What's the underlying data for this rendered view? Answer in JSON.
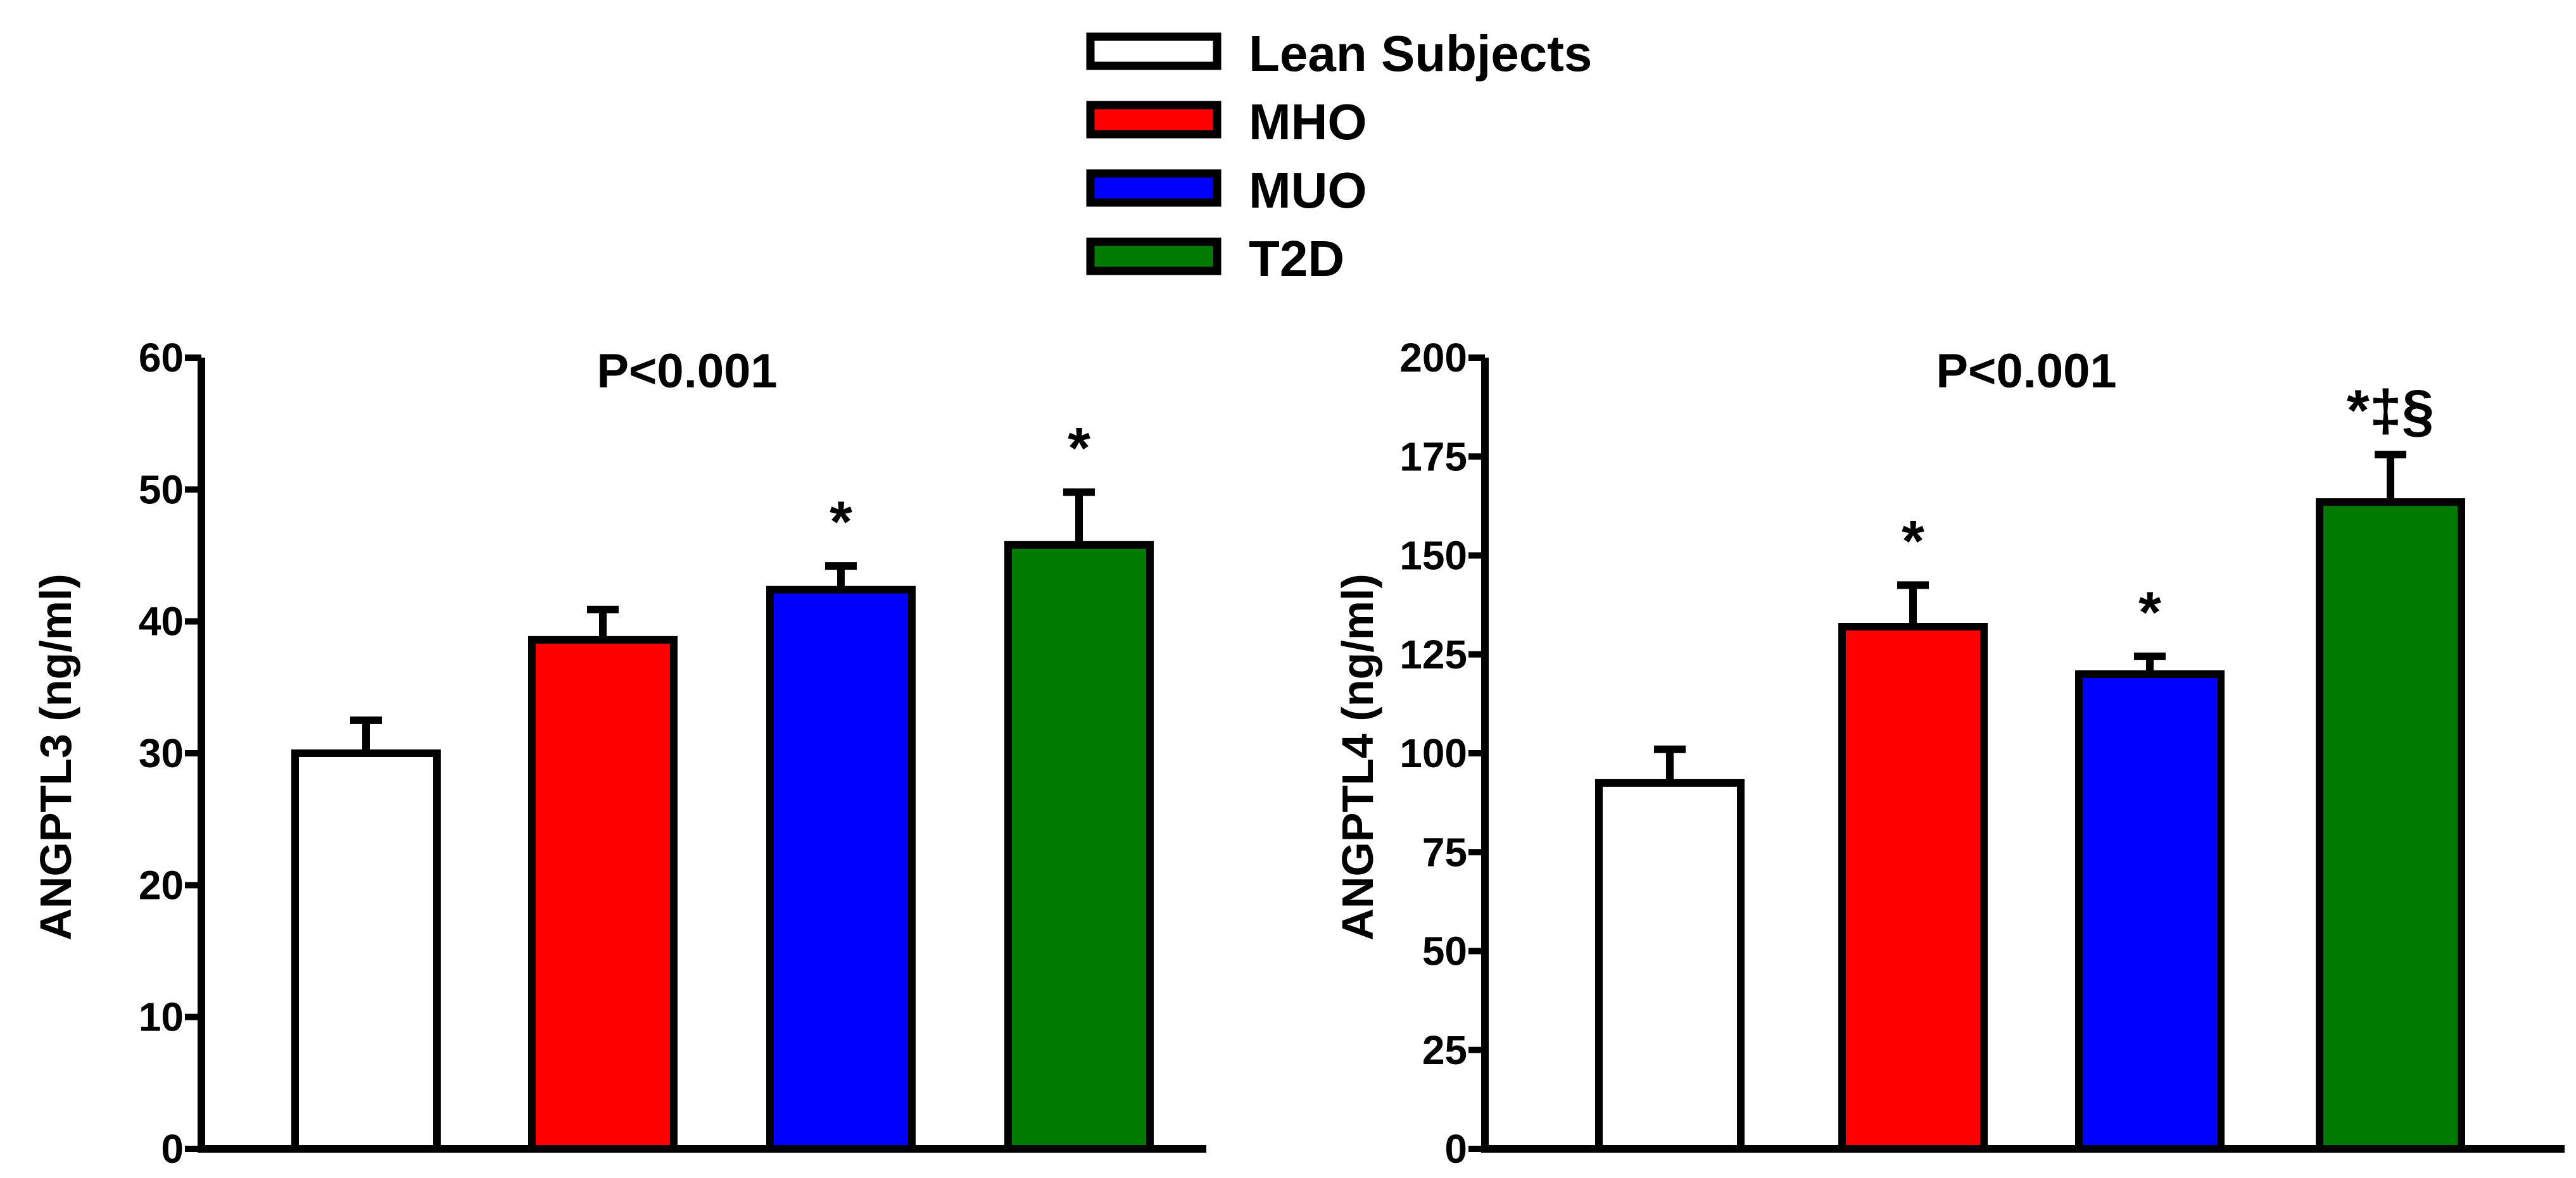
{
  "legend": {
    "items": [
      {
        "label": "Lean Subjects",
        "color": "#FFFFFF"
      },
      {
        "label": "MHO",
        "color": "#FF0000"
      },
      {
        "label": "MUO",
        "color": "#0000FF"
      },
      {
        "label": "T2D",
        "color": "#007A00"
      }
    ]
  },
  "chart_data": [
    {
      "type": "bar",
      "title": "P<0.001",
      "xlabel": "",
      "ylabel": "ANGPTL3 (ng/ml)",
      "ylim": [
        0,
        60
      ],
      "yticks": [
        0,
        10,
        20,
        30,
        40,
        50,
        60
      ],
      "categories": [
        "Lean Subjects",
        "MHO",
        "MUO",
        "T2D"
      ],
      "values": [
        30,
        38.6,
        42.4,
        45.8
      ],
      "errors": [
        2.5,
        2.3,
        1.8,
        4.0
      ],
      "significance": [
        "",
        "",
        "*",
        "*"
      ],
      "colors": [
        "#FFFFFF",
        "#FF0000",
        "#0000FF",
        "#007A00"
      ]
    },
    {
      "type": "bar",
      "title": "P<0.001",
      "xlabel": "",
      "ylabel": "ANGPTL4 (ng/ml)",
      "ylim": [
        0,
        200
      ],
      "yticks": [
        0,
        25,
        50,
        75,
        100,
        125,
        150,
        175,
        200
      ],
      "categories": [
        "Lean Subjects",
        "MHO",
        "MUO",
        "T2D"
      ],
      "values": [
        92.5,
        132,
        120,
        163.5
      ],
      "errors": [
        8.5,
        10.5,
        4.5,
        12
      ],
      "significance": [
        "",
        "*",
        "*",
        "*‡§"
      ],
      "colors": [
        "#FFFFFF",
        "#FF0000",
        "#0000FF",
        "#007A00"
      ]
    }
  ]
}
